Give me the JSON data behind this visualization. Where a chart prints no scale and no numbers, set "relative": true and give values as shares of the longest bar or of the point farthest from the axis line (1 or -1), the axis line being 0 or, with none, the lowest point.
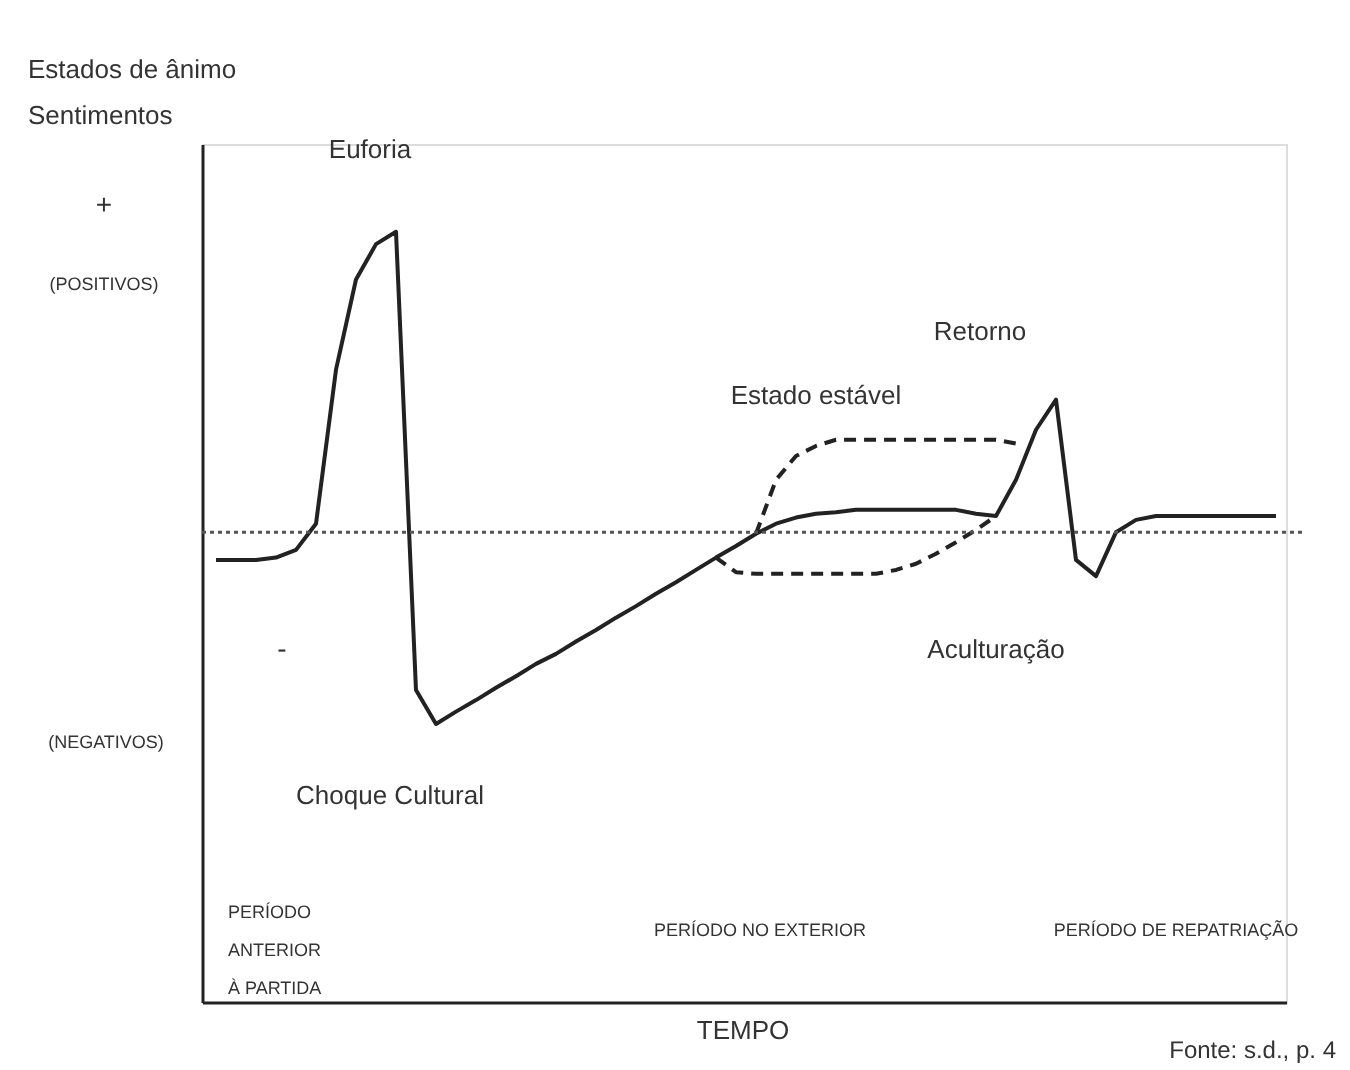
{
  "chart_data": {
    "type": "line",
    "relative": true,
    "ylabel": "Estados de ânimo\nSentimentos",
    "xlabel": "TEMPO",
    "categories": [
      null,
      null,
      null,
      null,
      null,
      null,
      null,
      null,
      null,
      null,
      null,
      null,
      null,
      null,
      null,
      null,
      null,
      null,
      null,
      null,
      null,
      null,
      null,
      null,
      null,
      null,
      null,
      null,
      null,
      null,
      null,
      null,
      null,
      null,
      null,
      null,
      null,
      null,
      null,
      null,
      null,
      null,
      null,
      null,
      null,
      null,
      null,
      null,
      null,
      null,
      null,
      null,
      null,
      null
    ],
    "series": [
      {
        "color": "#222222",
        "line_style": "solid",
        "values": [
          0.574,
          0.574,
          0.574,
          0.577,
          0.587,
          0.621,
          0.821,
          0.938,
          0.984,
          1.0,
          0.405,
          0.361,
          0.377,
          0.392,
          0.408,
          0.423,
          0.439,
          0.452,
          0.468,
          0.483,
          0.499,
          0.514,
          0.53,
          0.545,
          0.561,
          0.577,
          0.592,
          0.608,
          0.621,
          0.629,
          0.634,
          0.636,
          0.639,
          0.639,
          0.639,
          0.639,
          0.639,
          0.639,
          0.634,
          0.631,
          0.678,
          0.743,
          0.782,
          0.574,
          0.553,
          0.61,
          0.626,
          0.631,
          0.631,
          0.631,
          0.631,
          0.631,
          0.631,
          0.631
        ]
      },
      {
        "color": "#222222",
        "line_style": "dashed",
        "values": [
          null,
          null,
          null,
          null,
          null,
          null,
          null,
          null,
          null,
          null,
          null,
          null,
          null,
          null,
          null,
          null,
          null,
          null,
          null,
          null,
          null,
          null,
          null,
          null,
          null,
          null,
          null,
          0.608,
          0.678,
          0.709,
          0.722,
          0.73,
          0.73,
          0.73,
          0.73,
          0.73,
          0.73,
          0.73,
          0.73,
          0.73,
          0.725,
          null,
          null,
          null,
          null,
          null,
          null,
          null,
          null,
          null,
          null,
          null,
          null,
          null
        ]
      },
      {
        "color": "#222222",
        "line_style": "dashed",
        "values": [
          null,
          null,
          null,
          null,
          null,
          null,
          null,
          null,
          null,
          null,
          null,
          null,
          null,
          null,
          null,
          null,
          null,
          null,
          null,
          null,
          null,
          null,
          null,
          null,
          null,
          0.577,
          0.558,
          0.556,
          0.556,
          0.556,
          0.556,
          0.556,
          0.556,
          0.556,
          0.561,
          0.569,
          0.582,
          0.597,
          0.613,
          0.631,
          null,
          null,
          null,
          null,
          null,
          null,
          null,
          null,
          null,
          null,
          null,
          null,
          null,
          null
        ]
      }
    ],
    "ref_lines": [
      {
        "axis": "y",
        "value": 0.61,
        "color": "#555555",
        "line_style": "dotted"
      }
    ],
    "annotations": [
      "+",
      "(POSITIVOS)",
      "-",
      "(NEGATIVOS)",
      "Euforia",
      "Choque Cultural",
      "Estado estável",
      "Retorno",
      "Aculturação",
      "PERÍODO\nANTERIOR\nÀ PARTIDA",
      "PERÍODO NO EXTERIOR",
      "PERÍODO DE REPATRIAÇÃO",
      "Fonte: s.d., p. 4"
    ]
  }
}
